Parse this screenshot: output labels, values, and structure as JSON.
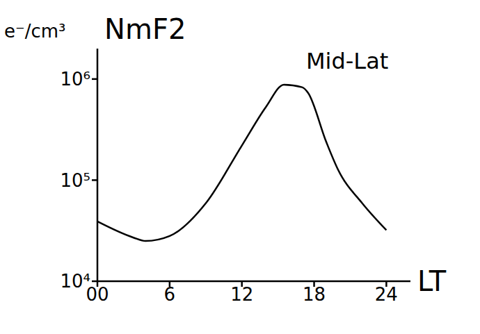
{
  "chart_data": {
    "type": "line",
    "title": "NmF2",
    "y_label": "e⁻/cm³",
    "x_label": "LT",
    "annotation": "Mid-Lat",
    "x": [
      0,
      3,
      4,
      6,
      9,
      12,
      14,
      15.5,
      17,
      17.5,
      19,
      20,
      22,
      24
    ],
    "values": [
      39000,
      27000,
      25000,
      28000,
      59000,
      220000,
      530000,
      880000,
      830000,
      730000,
      240000,
      126000,
      59000,
      32000
    ],
    "color": "#000000",
    "xlim": [
      0,
      26
    ],
    "xticks": [
      {
        "value": 0,
        "label": "00"
      },
      6,
      12,
      18,
      24
    ],
    "ylim": [
      10000,
      2000000
    ],
    "yticks": [
      {
        "value": 10000,
        "label": "10⁴"
      },
      {
        "value": 100000,
        "label": "10⁵"
      },
      {
        "value": 1000000,
        "label": "10⁶"
      }
    ],
    "log": "y",
    "grid": false
  }
}
